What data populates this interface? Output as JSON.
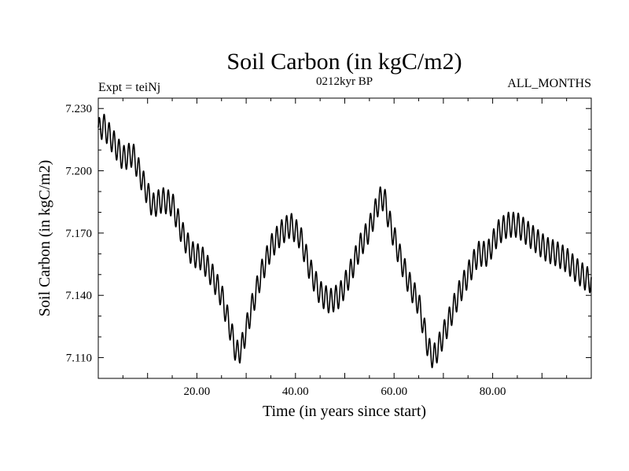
{
  "chart_data": {
    "type": "line",
    "title": "Soil Carbon (in kgC/m2)",
    "subtitle": "0212kyr BP",
    "left_label": "Expt = teiNj",
    "right_label": "ALL_MONTHS",
    "xlabel": "Time (in years since start)",
    "ylabel": "Soil Carbon (in kgC/m2)",
    "xlim": [
      0,
      100
    ],
    "ylim": [
      7.1,
      7.235
    ],
    "x_ticks": [
      20,
      40,
      60,
      80
    ],
    "x_tick_labels": [
      "20.00",
      "40.00",
      "60.00",
      "80.00"
    ],
    "y_ticks": [
      7.11,
      7.14,
      7.17,
      7.2,
      7.23
    ],
    "y_tick_labels": [
      "7.110",
      "7.140",
      "7.170",
      "7.200",
      "7.230"
    ],
    "series": [
      {
        "name": "Soil Carbon",
        "annual_cycle_amplitude": 0.006,
        "envelope_x": [
          0,
          1,
          3,
          5,
          7,
          9,
          11,
          13,
          15,
          17,
          19,
          21,
          23,
          25,
          27,
          28,
          29,
          31,
          33,
          35,
          37,
          39,
          41,
          43,
          45,
          47,
          49,
          51,
          53,
          55,
          57,
          58,
          59,
          61,
          63,
          65,
          67,
          68,
          69,
          71,
          73,
          75,
          77,
          79,
          81,
          83,
          85,
          87,
          89,
          91,
          93,
          95,
          97,
          99,
          100
        ],
        "envelope_y": [
          7.219,
          7.222,
          7.214,
          7.206,
          7.208,
          7.195,
          7.183,
          7.186,
          7.184,
          7.17,
          7.16,
          7.158,
          7.15,
          7.14,
          7.122,
          7.112,
          7.114,
          7.133,
          7.15,
          7.163,
          7.17,
          7.174,
          7.168,
          7.152,
          7.141,
          7.137,
          7.14,
          7.15,
          7.163,
          7.172,
          7.186,
          7.187,
          7.176,
          7.16,
          7.146,
          7.136,
          7.114,
          7.11,
          7.115,
          7.127,
          7.14,
          7.15,
          7.16,
          7.16,
          7.17,
          7.174,
          7.174,
          7.17,
          7.166,
          7.162,
          7.16,
          7.157,
          7.152,
          7.148,
          7.147
        ]
      }
    ]
  }
}
